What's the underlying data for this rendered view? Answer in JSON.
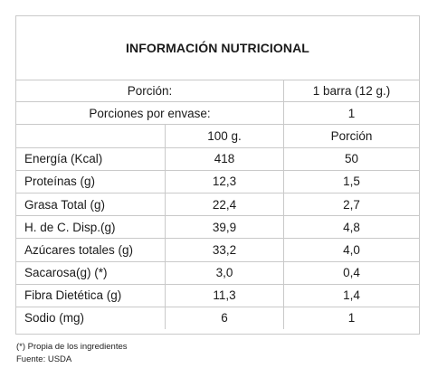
{
  "title": "INFORMACIÓN NUTRICIONAL",
  "serving": {
    "label": "Porción:",
    "value": "1 barra (12 g.)"
  },
  "servings_per_container": {
    "label": "Porciones por envase:",
    "value": "1"
  },
  "columns": {
    "per_100g": "100 g.",
    "per_serving": "Porción"
  },
  "rows": [
    {
      "label": "Energía (Kcal)",
      "per_100g": "418",
      "per_serving": "50"
    },
    {
      "label": "Proteínas (g)",
      "per_100g": "12,3",
      "per_serving": "1,5"
    },
    {
      "label": "Grasa Total (g)",
      "per_100g": "22,4",
      "per_serving": "2,7"
    },
    {
      "label": "H. de C. Disp.(g)",
      "per_100g": "39,9",
      "per_serving": "4,8"
    },
    {
      "label": "Azúcares totales (g)",
      "per_100g": "33,2",
      "per_serving": "4,0"
    },
    {
      "label": "Sacarosa(g) (*)",
      "per_100g": "3,0",
      "per_serving": "0,4"
    },
    {
      "label": "Fibra Dietética (g)",
      "per_100g": "11,3",
      "per_serving": "1,4"
    },
    {
      "label": "Sodio (mg)",
      "per_100g": "6",
      "per_serving": "1"
    }
  ],
  "footnotes": {
    "note": "(*) Propia de los ingredientes",
    "source": "Fuente: USDA"
  }
}
